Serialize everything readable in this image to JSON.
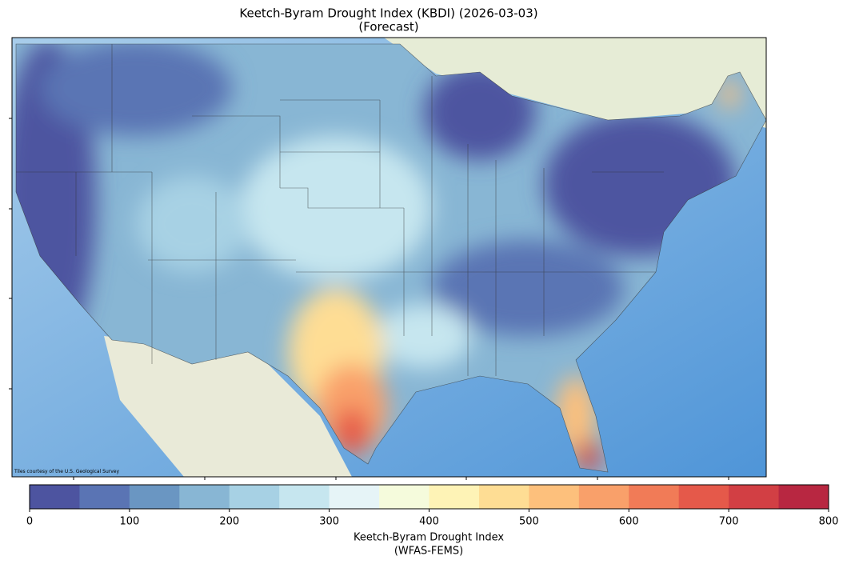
{
  "title": "Keetch-Byram Drought Index (KBDI) (2026-03-03)",
  "subtitle": "(Forecast)",
  "attribution": "Tiles courtesy of the U.S. Geological Survey",
  "colorbar": {
    "label": "Keetch-Byram Drought Index",
    "sublabel": "(WFAS-FEMS)",
    "lim": [
      0,
      800
    ],
    "bounds": [
      0,
      50,
      100,
      150,
      200,
      250,
      300,
      350,
      400,
      450,
      500,
      550,
      600,
      650,
      700,
      750,
      800
    ],
    "colors": [
      "#4d54a0",
      "#5a74b4",
      "#6a96c2",
      "#88b6d4",
      "#a7d1e4",
      "#c6e6ef",
      "#e6f4f7",
      "#f5fbdc",
      "#fef3b6",
      "#fedd94",
      "#fdc07c",
      "#f9a06a",
      "#f17b57",
      "#e5594a",
      "#d23f44",
      "#b82741"
    ],
    "ticks": [
      0,
      100,
      200,
      300,
      400,
      500,
      600,
      700,
      800
    ]
  }
}
